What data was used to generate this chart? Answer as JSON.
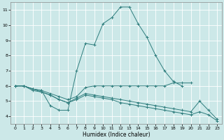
{
  "xlabel": "Humidex (Indice chaleur)",
  "bg_color": "#cce8e8",
  "grid_color": "#ffffff",
  "line_color": "#2e7d7d",
  "xlim": [
    -0.5,
    23.5
  ],
  "ylim": [
    3.5,
    11.5
  ],
  "xticks": [
    0,
    1,
    2,
    3,
    4,
    5,
    6,
    7,
    8,
    9,
    10,
    11,
    12,
    13,
    14,
    15,
    16,
    17,
    18,
    19,
    20,
    21,
    22,
    23
  ],
  "yticks": [
    4,
    5,
    6,
    7,
    8,
    9,
    10,
    11
  ],
  "line1_x": [
    0,
    1,
    2,
    3,
    4,
    5,
    6,
    7,
    8,
    9,
    10,
    11,
    12,
    13,
    14,
    15,
    16,
    17,
    18,
    19
  ],
  "line1_y": [
    6.0,
    6.0,
    5.8,
    5.7,
    4.7,
    4.4,
    4.4,
    7.0,
    8.8,
    8.7,
    10.1,
    10.5,
    11.2,
    11.2,
    10.1,
    9.2,
    8.0,
    7.0,
    6.3,
    6.0
  ],
  "line2_x": [
    0,
    1,
    2,
    3,
    4,
    5,
    6,
    7,
    8,
    9,
    10,
    11,
    12,
    13,
    14,
    15,
    16,
    17,
    18,
    19,
    20,
    21,
    22,
    23
  ],
  "line2_y": [
    6.0,
    6.0,
    5.8,
    5.7,
    5.5,
    5.3,
    5.1,
    5.3,
    5.9,
    6.0,
    6.0,
    6.0,
    6.0,
    6.0,
    6.0,
    6.0,
    6.0,
    6.0,
    6.2,
    6.2,
    6.2,
    null,
    null,
    null
  ],
  "line3_x": [
    0,
    1,
    2,
    3,
    4,
    5,
    6,
    7,
    8,
    9,
    10,
    11,
    12,
    13,
    14,
    15,
    16,
    17,
    18,
    19,
    20,
    21,
    22,
    23
  ],
  "line3_y": [
    6.0,
    6.0,
    5.8,
    5.6,
    5.4,
    5.1,
    4.9,
    5.2,
    5.5,
    5.4,
    5.3,
    5.2,
    5.1,
    5.0,
    4.9,
    4.8,
    4.7,
    4.6,
    4.5,
    4.4,
    4.3,
    5.0,
    4.4,
    3.8
  ],
  "line4_x": [
    0,
    1,
    2,
    3,
    4,
    5,
    6,
    7,
    8,
    9,
    10,
    11,
    12,
    13,
    14,
    15,
    16,
    17,
    18,
    19,
    20,
    21,
    22,
    23
  ],
  "line4_y": [
    6.0,
    6.0,
    5.7,
    5.6,
    5.4,
    5.1,
    4.9,
    5.1,
    5.4,
    5.3,
    5.2,
    5.1,
    4.9,
    4.8,
    4.7,
    4.6,
    4.5,
    4.4,
    4.3,
    4.2,
    4.1,
    4.3,
    4.1,
    3.7
  ]
}
